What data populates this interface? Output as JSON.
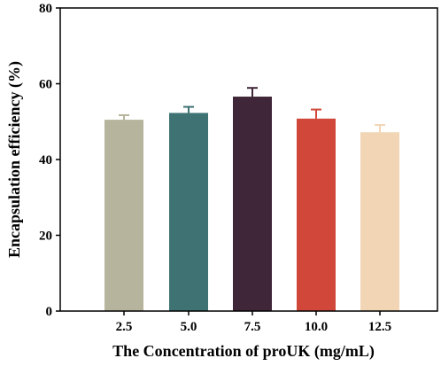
{
  "chart_data": {
    "type": "bar",
    "categories": [
      "2.5",
      "5.0",
      "7.5",
      "10.0",
      "12.5"
    ],
    "values": [
      50.5,
      52.3,
      56.6,
      50.8,
      47.2
    ],
    "errors": [
      1.2,
      1.6,
      2.3,
      2.4,
      1.9
    ],
    "colors": [
      "#b6b49c",
      "#3f7373",
      "#3f2638",
      "#d1483a",
      "#f1d5b5"
    ],
    "xlabel": "The Concentration of proUK (mg/mL)",
    "ylabel": "Encapsulation efficiency (%)",
    "ylim": [
      0,
      80
    ],
    "yticks": [
      "0",
      "20",
      "40",
      "60",
      "80"
    ],
    "grid": false,
    "legend": "none"
  }
}
